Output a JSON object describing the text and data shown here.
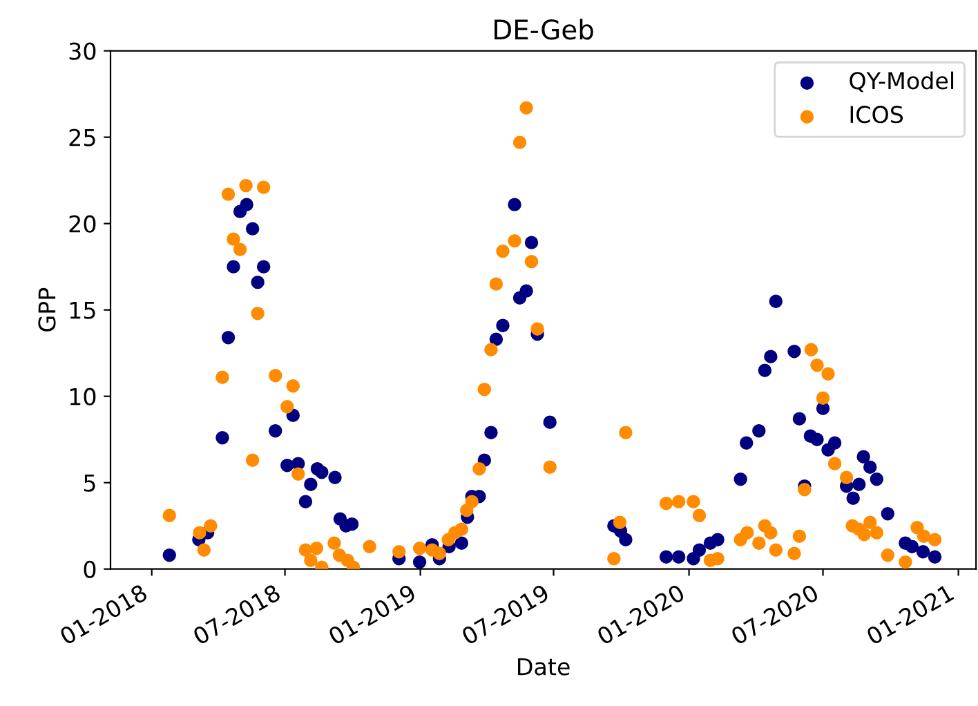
{
  "chart_data": {
    "type": "scatter",
    "title": "DE-Geb",
    "xlabel": "Date",
    "ylabel": "GPP",
    "xlim": [
      "2017-11-06",
      "2021-01-25"
    ],
    "xticks": [
      {
        "value": "2018-01-01",
        "label": "01-2018"
      },
      {
        "value": "2018-07-01",
        "label": "07-2018"
      },
      {
        "value": "2019-01-01",
        "label": "01-2019"
      },
      {
        "value": "2019-07-01",
        "label": "07-2019"
      },
      {
        "value": "2020-01-01",
        "label": "01-2020"
      },
      {
        "value": "2020-07-01",
        "label": "07-2020"
      },
      {
        "value": "2021-01-01",
        "label": "01-2021"
      }
    ],
    "ylim": [
      0,
      30
    ],
    "yticks": [
      0,
      5,
      10,
      15,
      20,
      25,
      30
    ],
    "legend": "top right",
    "marker": "circle",
    "grid": false,
    "series": [
      {
        "name": "QY-Model",
        "color": "#000080",
        "x": [
          "2018-01-25",
          "2018-03-06",
          "2018-03-18",
          "2018-04-07",
          "2018-04-15",
          "2018-04-22",
          "2018-05-01",
          "2018-05-10",
          "2018-05-18",
          "2018-05-25",
          "2018-06-02",
          "2018-06-18",
          "2018-07-04",
          "2018-07-12",
          "2018-07-19",
          "2018-07-29",
          "2018-08-05",
          "2018-08-14",
          "2018-08-20",
          "2018-09-07",
          "2018-09-14",
          "2018-09-22",
          "2018-09-30",
          "2018-12-03",
          "2018-12-31",
          "2019-01-17",
          "2019-01-27",
          "2019-02-09",
          "2019-02-26",
          "2019-03-06",
          "2019-03-12",
          "2019-03-22",
          "2019-03-29",
          "2019-04-07",
          "2019-04-14",
          "2019-04-23",
          "2019-05-09",
          "2019-05-16",
          "2019-05-25",
          "2019-06-01",
          "2019-06-09",
          "2019-06-26",
          "2019-09-21",
          "2019-09-30",
          "2019-10-07",
          "2019-12-01",
          "2019-12-18",
          "2020-01-07",
          "2020-01-15",
          "2020-01-30",
          "2020-02-09",
          "2020-03-11",
          "2020-03-19",
          "2020-04-05",
          "2020-04-13",
          "2020-04-21",
          "2020-04-28",
          "2020-05-23",
          "2020-05-30",
          "2020-06-06",
          "2020-06-14",
          "2020-06-23",
          "2020-07-01",
          "2020-07-08",
          "2020-07-17",
          "2020-08-02",
          "2020-08-11",
          "2020-08-19",
          "2020-08-25",
          "2020-09-03",
          "2020-09-12",
          "2020-09-27",
          "2020-10-21",
          "2020-10-30",
          "2020-11-14",
          "2020-11-30"
        ],
        "values": [
          0.8,
          1.7,
          2.1,
          7.6,
          13.4,
          17.5,
          20.7,
          21.1,
          19.7,
          16.6,
          17.5,
          8.0,
          6.0,
          8.9,
          6.1,
          3.9,
          4.9,
          5.8,
          5.6,
          5.3,
          2.9,
          2.5,
          2.6,
          0.6,
          0.4,
          1.4,
          0.6,
          1.3,
          1.5,
          3.0,
          4.2,
          4.2,
          6.3,
          7.9,
          13.3,
          14.1,
          21.1,
          15.7,
          16.1,
          18.9,
          13.6,
          8.5,
          2.5,
          2.2,
          1.7,
          0.7,
          0.7,
          0.6,
          1.1,
          1.5,
          1.7,
          5.2,
          7.3,
          8.0,
          11.5,
          12.3,
          15.5,
          12.6,
          8.7,
          4.8,
          7.7,
          7.5,
          9.3,
          6.9,
          7.3,
          4.8,
          4.1,
          4.9,
          6.5,
          5.9,
          5.2,
          3.2,
          1.5,
          1.3,
          1.0,
          0.7
        ]
      },
      {
        "name": "ICOS",
        "color": "#ff8c00",
        "x": [
          "2018-01-25",
          "2018-03-07",
          "2018-03-13",
          "2018-03-22",
          "2018-04-07",
          "2018-04-15",
          "2018-04-22",
          "2018-05-01",
          "2018-05-09",
          "2018-05-18",
          "2018-05-25",
          "2018-06-02",
          "2018-06-18",
          "2018-07-04",
          "2018-07-12",
          "2018-07-19",
          "2018-07-29",
          "2018-08-05",
          "2018-08-13",
          "2018-08-20",
          "2018-09-06",
          "2018-09-13",
          "2018-09-24",
          "2018-10-02",
          "2018-10-24",
          "2018-12-03",
          "2018-12-31",
          "2019-01-17",
          "2019-01-27",
          "2019-02-08",
          "2019-02-17",
          "2019-02-26",
          "2019-03-05",
          "2019-03-12",
          "2019-03-22",
          "2019-03-29",
          "2019-04-07",
          "2019-04-14",
          "2019-04-23",
          "2019-05-09",
          "2019-05-16",
          "2019-05-25",
          "2019-06-01",
          "2019-06-09",
          "2019-06-26",
          "2019-09-21",
          "2019-09-29",
          "2019-10-07",
          "2019-12-01",
          "2019-12-18",
          "2020-01-07",
          "2020-01-15",
          "2020-01-30",
          "2020-02-09",
          "2020-03-11",
          "2020-03-20",
          "2020-04-05",
          "2020-04-13",
          "2020-04-21",
          "2020-04-28",
          "2020-05-23",
          "2020-05-30",
          "2020-06-06",
          "2020-06-15",
          "2020-06-23",
          "2020-07-01",
          "2020-07-08",
          "2020-07-17",
          "2020-08-02",
          "2020-08-10",
          "2020-08-19",
          "2020-08-26",
          "2020-09-03",
          "2020-09-12",
          "2020-09-27",
          "2020-10-21",
          "2020-11-06",
          "2020-11-15",
          "2020-11-30"
        ],
        "values": [
          3.1,
          2.1,
          1.1,
          2.5,
          11.1,
          21.7,
          19.1,
          18.5,
          22.2,
          6.3,
          14.8,
          22.1,
          11.2,
          9.4,
          10.6,
          5.5,
          1.1,
          0.5,
          1.2,
          0.1,
          1.5,
          0.8,
          0.5,
          0.1,
          1.3,
          1.0,
          1.2,
          1.1,
          0.9,
          1.7,
          2.1,
          2.3,
          3.4,
          3.9,
          5.8,
          10.4,
          12.7,
          16.5,
          18.4,
          19.0,
          24.7,
          26.7,
          17.8,
          13.9,
          5.9,
          0.6,
          2.7,
          7.9,
          3.8,
          3.9,
          3.9,
          3.1,
          0.5,
          0.6,
          1.7,
          2.1,
          1.5,
          2.5,
          2.1,
          1.1,
          0.9,
          1.9,
          4.6,
          12.7,
          11.8,
          9.9,
          11.3,
          6.1,
          5.3,
          2.5,
          2.3,
          2.0,
          2.7,
          2.1,
          0.8,
          0.4,
          2.4,
          1.9,
          1.7
        ]
      }
    ]
  }
}
